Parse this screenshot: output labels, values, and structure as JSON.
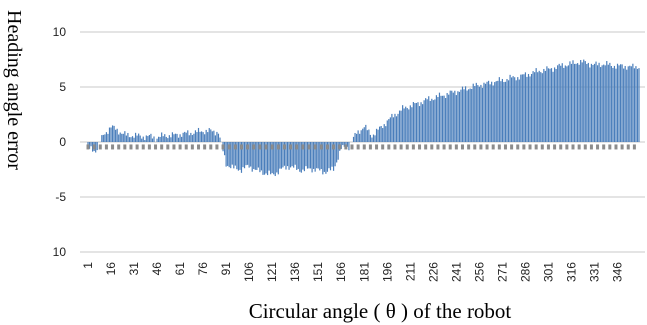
{
  "chart_data": {
    "type": "bar",
    "title": "",
    "xlabel": "Circular angle ( θ ) of the robot",
    "ylabel": "Heading angle error",
    "ylim": [
      -10,
      10
    ],
    "ytick_labels": [
      "10",
      "5",
      "0",
      "-5",
      "10"
    ],
    "xlim": [
      1,
      360
    ],
    "xtick_labels": [
      "1",
      "16",
      "31",
      "46",
      "61",
      "76",
      "91",
      "106",
      "121",
      "136",
      "151",
      "166",
      "181",
      "196",
      "211",
      "226",
      "241",
      "256",
      "271",
      "286",
      "301",
      "316",
      "331",
      "346"
    ],
    "grid": "horizontal",
    "bar_color": "#4a7ebb",
    "baseline_marker_color": "#8c8c8c",
    "baseline_marker_value": -0.45,
    "series": [
      {
        "angles": [
          1,
          6,
          11,
          16,
          21,
          26,
          31,
          36,
          41,
          46,
          51,
          56,
          61,
          66,
          71,
          76,
          81,
          86,
          91,
          96,
          101,
          106,
          111,
          116,
          121,
          126,
          131,
          136,
          141,
          146,
          151,
          156,
          161,
          166,
          171,
          176,
          181,
          186,
          191,
          196,
          201,
          206,
          211,
          216,
          221,
          226,
          231,
          236,
          241,
          246,
          251,
          256,
          261,
          266,
          271,
          276,
          281,
          286,
          291,
          296,
          301,
          306,
          311,
          316,
          321,
          326,
          331,
          336,
          341,
          346,
          351,
          356,
          360
        ],
        "values": [
          -0.6,
          -0.8,
          0.6,
          1.4,
          1.0,
          0.6,
          0.6,
          0.5,
          0.5,
          0.4,
          0.6,
          0.6,
          0.7,
          0.8,
          0.9,
          1.0,
          1.0,
          0.9,
          -2.0,
          -2.4,
          -2.5,
          -2.2,
          -2.6,
          -2.8,
          -3.0,
          -2.6,
          -2.2,
          -2.4,
          -2.6,
          -2.4,
          -2.6,
          -2.7,
          -2.5,
          -0.6,
          -0.4,
          0.8,
          1.4,
          0.6,
          1.2,
          1.9,
          2.5,
          3.0,
          3.3,
          3.5,
          3.8,
          4.0,
          4.2,
          4.4,
          4.6,
          4.8,
          5.0,
          5.2,
          5.3,
          5.5,
          5.6,
          5.8,
          5.9,
          6.1,
          6.3,
          6.5,
          6.6,
          6.8,
          7.0,
          7.1,
          7.3,
          7.2,
          7.0,
          7.1,
          7.0,
          6.9,
          6.9,
          6.8,
          6.9
        ]
      }
    ]
  }
}
